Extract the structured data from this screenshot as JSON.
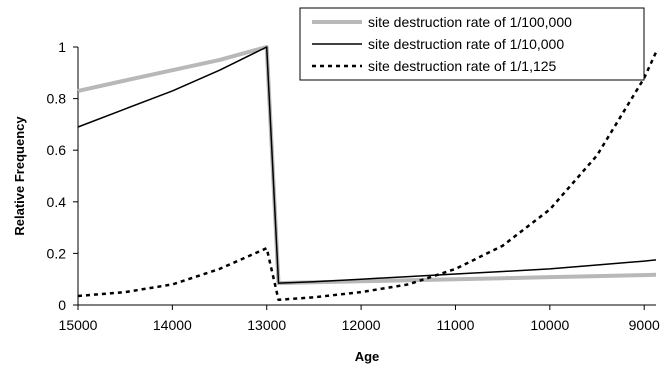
{
  "chart_data": {
    "type": "line",
    "xlabel": "Age",
    "ylabel": "Relative Frequency",
    "xlim": [
      15000,
      8875
    ],
    "ylim": [
      0,
      1
    ],
    "x_reversed": true,
    "x_ticks": [
      15000,
      14000,
      13000,
      12000,
      11000,
      10000,
      9000
    ],
    "y_ticks": [
      0,
      0.2,
      0.4,
      0.6,
      0.8,
      1
    ],
    "y_tick_labels": [
      "0",
      "0.2",
      "0.4",
      "0.6",
      "0.8",
      "1"
    ],
    "grid": false,
    "legend_position": "top-right",
    "series": [
      {
        "name": "site destruction rate of 1/100,000",
        "color": "#b8b8b8",
        "style": "solid-thick",
        "x": [
          15000,
          14500,
          14000,
          13500,
          13000,
          12875,
          12500,
          12000,
          11500,
          11000,
          10500,
          10000,
          9500,
          9000,
          8875
        ],
        "y": [
          0.83,
          0.87,
          0.91,
          0.95,
          1.0,
          0.085,
          0.088,
          0.092,
          0.096,
          0.1,
          0.104,
          0.108,
          0.112,
          0.116,
          0.117
        ]
      },
      {
        "name": "site destruction rate of 1/10,000",
        "color": "#000000",
        "style": "solid",
        "x": [
          15000,
          14500,
          14000,
          13500,
          13000,
          12875,
          12500,
          12000,
          11500,
          11000,
          10500,
          10000,
          9500,
          9000,
          8875
        ],
        "y": [
          0.69,
          0.76,
          0.83,
          0.91,
          1.0,
          0.085,
          0.09,
          0.1,
          0.11,
          0.12,
          0.13,
          0.14,
          0.155,
          0.17,
          0.175
        ]
      },
      {
        "name": "site destruction rate of 1/1,125",
        "color": "#000000",
        "style": "dotted",
        "x": [
          15000,
          14500,
          14000,
          13500,
          13000,
          12875,
          12500,
          12000,
          11500,
          11000,
          10500,
          10000,
          9500,
          9000,
          8875
        ],
        "y": [
          0.035,
          0.05,
          0.08,
          0.14,
          0.22,
          0.02,
          0.03,
          0.05,
          0.08,
          0.14,
          0.23,
          0.37,
          0.58,
          0.88,
          0.98
        ]
      }
    ]
  }
}
